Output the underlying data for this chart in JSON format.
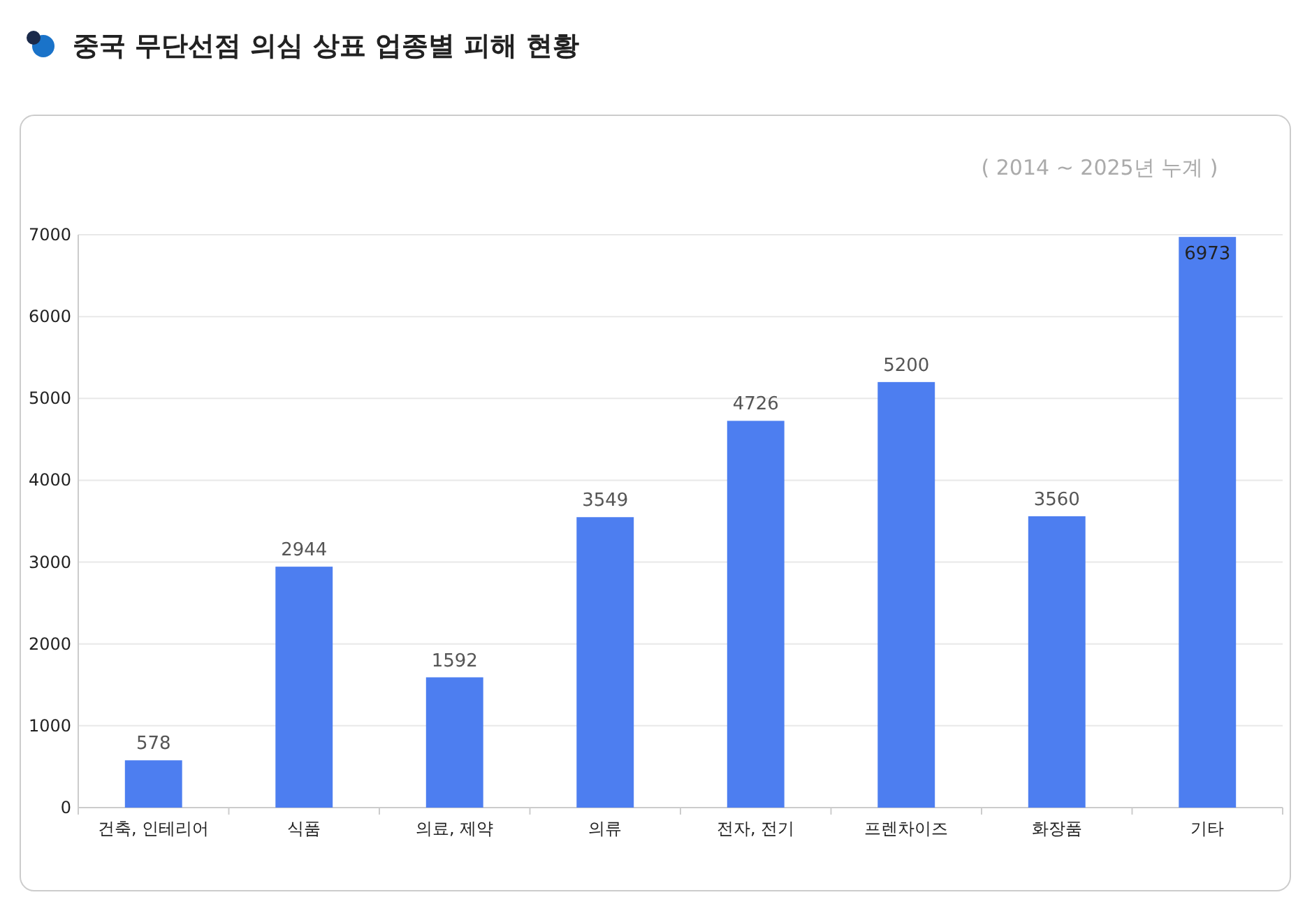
{
  "chart_data": {
    "type": "bar",
    "title": "중국 무단선점 의심 상표 업종별 피해 현황",
    "subtitle": "( 2014 ~ 2025년 누계 )",
    "categories": [
      "건축, 인테리어",
      "식품",
      "의료, 제약",
      "의류",
      "전자, 전기",
      "프렌차이즈",
      "화장품",
      "기타"
    ],
    "values": [
      578,
      2944,
      1592,
      3549,
      4726,
      5200,
      3560,
      6973
    ],
    "color": "#4d7ef0",
    "ylim": [
      0,
      7000
    ],
    "yticks": [
      0,
      1000,
      2000,
      3000,
      4000,
      5000,
      6000,
      7000
    ],
    "grid": "y",
    "data_labels": true
  }
}
